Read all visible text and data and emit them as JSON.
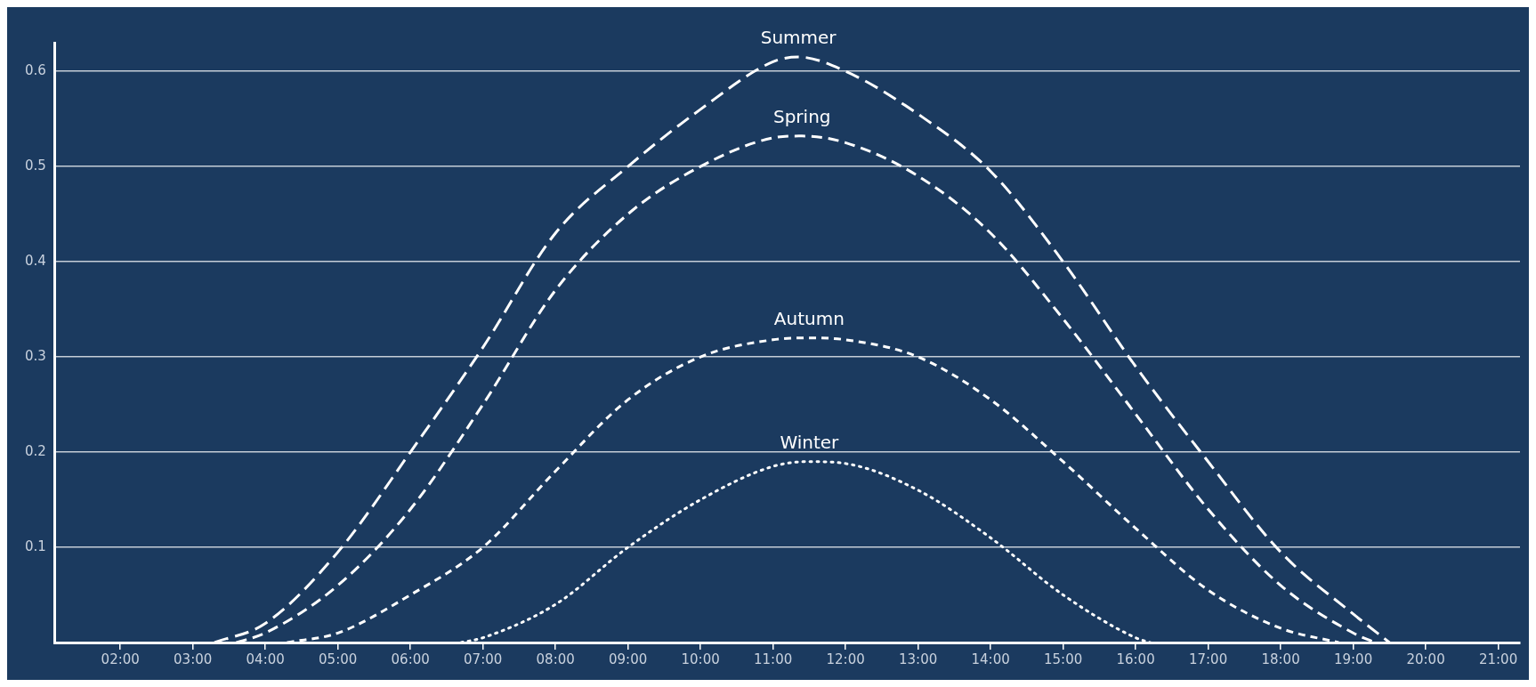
{
  "chart_data": {
    "type": "line",
    "xlim": [
      1.1,
      21.3
    ],
    "ylim": [
      0,
      0.63
    ],
    "xticks": [
      {
        "value": 2,
        "label": "02:00"
      },
      {
        "value": 3,
        "label": "03:00"
      },
      {
        "value": 4,
        "label": "04:00"
      },
      {
        "value": 5,
        "label": "05:00"
      },
      {
        "value": 6,
        "label": "06:00"
      },
      {
        "value": 7,
        "label": "07:00"
      },
      {
        "value": 8,
        "label": "08:00"
      },
      {
        "value": 9,
        "label": "09:00"
      },
      {
        "value": 10,
        "label": "10:00"
      },
      {
        "value": 11,
        "label": "11:00"
      },
      {
        "value": 12,
        "label": "12:00"
      },
      {
        "value": 13,
        "label": "13:00"
      },
      {
        "value": 14,
        "label": "14:00"
      },
      {
        "value": 15,
        "label": "15:00"
      },
      {
        "value": 16,
        "label": "16:00"
      },
      {
        "value": 17,
        "label": "17:00"
      },
      {
        "value": 18,
        "label": "18:00"
      },
      {
        "value": 19,
        "label": "19:00"
      },
      {
        "value": 20,
        "label": "20:00"
      },
      {
        "value": 21,
        "label": "21:00"
      }
    ],
    "yticks": [
      0.1,
      0.2,
      0.3,
      0.4,
      0.5,
      0.6
    ],
    "grid": "y",
    "legend": false,
    "marker": "none",
    "series": [
      {
        "name": "Summer",
        "color": "#ffffff",
        "line_style": "dashed",
        "x": [
          3.3,
          4,
          5,
          6,
          7,
          8,
          9,
          10,
          11,
          11.35,
          12,
          13,
          14,
          15,
          16,
          17,
          18,
          19,
          19.5
        ],
        "values": [
          0,
          0.02,
          0.095,
          0.2,
          0.31,
          0.43,
          0.5,
          0.56,
          0.61,
          0.615,
          0.6,
          0.555,
          0.495,
          0.4,
          0.29,
          0.19,
          0.095,
          0.03,
          0
        ]
      },
      {
        "name": "Spring",
        "color": "#ffffff",
        "line_style": "dashed",
        "x": [
          3.6,
          4,
          5,
          6,
          7,
          8,
          9,
          10,
          11,
          11.4,
          12,
          13,
          14,
          15,
          16,
          17,
          18,
          19,
          19.3
        ],
        "values": [
          0,
          0.01,
          0.06,
          0.14,
          0.25,
          0.37,
          0.45,
          0.5,
          0.53,
          0.532,
          0.525,
          0.49,
          0.43,
          0.34,
          0.24,
          0.14,
          0.06,
          0.01,
          0
        ]
      },
      {
        "name": "Autumn",
        "color": "#ffffff",
        "line_style": "dashed",
        "x": [
          4.3,
          5,
          6,
          7,
          8,
          9,
          10,
          11,
          11.5,
          12,
          13,
          14,
          15,
          16,
          17,
          18,
          18.8
        ],
        "values": [
          0,
          0.01,
          0.05,
          0.1,
          0.18,
          0.255,
          0.3,
          0.318,
          0.32,
          0.318,
          0.3,
          0.255,
          0.19,
          0.12,
          0.055,
          0.015,
          0
        ]
      },
      {
        "name": "Winter",
        "color": "#ffffff",
        "line_style": "dotted",
        "x": [
          6.7,
          7,
          8,
          9,
          10,
          11,
          11.5,
          12,
          13,
          14,
          15,
          16,
          16.2
        ],
        "values": [
          0,
          0.005,
          0.04,
          0.1,
          0.15,
          0.185,
          0.19,
          0.188,
          0.16,
          0.11,
          0.05,
          0.005,
          0
        ]
      }
    ]
  }
}
